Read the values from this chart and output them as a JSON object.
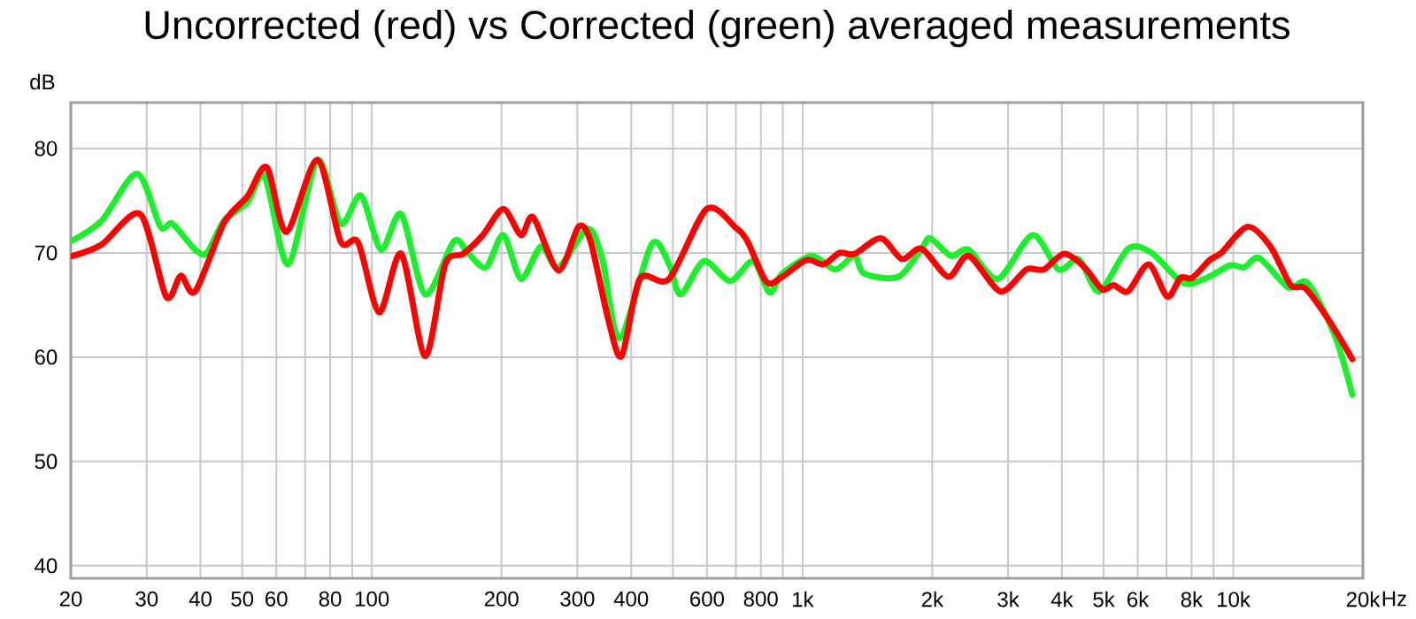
{
  "chart_data": {
    "type": "line",
    "title": "Uncorrected (red) vs Corrected (green) averaged measurements",
    "ylabel": "dB",
    "xlabel": "Hz",
    "log": "x",
    "grid": true,
    "line_style": "solid",
    "xlim": [
      20,
      20000
    ],
    "ylim": [
      38.8,
      84.4
    ],
    "xticks": [
      20,
      30,
      40,
      50,
      60,
      {
        "value": 70,
        "label": null
      },
      80,
      {
        "value": 90,
        "label": null
      },
      100,
      200,
      300,
      400,
      {
        "value": 500,
        "label": null
      },
      600,
      {
        "value": 700,
        "label": null
      },
      800,
      {
        "value": 900,
        "label": null
      },
      {
        "value": 1000,
        "label": "1k"
      },
      {
        "value": 2000,
        "label": "2k"
      },
      {
        "value": 3000,
        "label": "3k"
      },
      {
        "value": 4000,
        "label": "4k"
      },
      {
        "value": 5000,
        "label": "5k"
      },
      {
        "value": 6000,
        "label": "6k"
      },
      {
        "value": 7000,
        "label": null
      },
      {
        "value": 8000,
        "label": "8k"
      },
      {
        "value": 9000,
        "label": null
      },
      {
        "value": 10000,
        "label": "10k"
      },
      {
        "value": 20000,
        "label": "20k"
      }
    ],
    "yticks": [
      40,
      50,
      60,
      70,
      80
    ],
    "series": [
      {
        "color": "#1cf02c",
        "x": [
          20.2,
          23.6,
          28.5,
          32.3,
          34.4,
          38.9,
          41.4,
          45.4,
          51.4,
          56.4,
          63.9,
          74.7,
          84.6,
          94.3,
          105,
          117,
          133,
          155,
          167,
          184,
          202,
          222,
          247,
          271,
          317,
          343,
          376,
          446,
          490,
          521,
          590,
          679,
          768,
          838,
          897,
          1050,
          1190,
          1320,
          1390,
          1670,
          1890,
          1980,
          2210,
          2430,
          2840,
          3420,
          3930,
          4380,
          4880,
          5700,
          6460,
          7660,
          8680,
          9830,
          10600,
          11500,
          13400,
          14900,
          17200,
          18900
        ],
        "values": [
          71.2,
          73.1,
          77.6,
          72.5,
          72.8,
          70.3,
          70.0,
          73.1,
          74.8,
          77.3,
          68.9,
          78.9,
          72.8,
          75.5,
          70.3,
          73.7,
          66.0,
          71.1,
          70.0,
          68.6,
          71.7,
          67.5,
          70.6,
          68.6,
          72.3,
          69.4,
          61.8,
          70.8,
          68.9,
          66.0,
          69.2,
          67.3,
          69.2,
          66.2,
          68.0,
          69.7,
          68.4,
          69.7,
          68.0,
          67.7,
          70.4,
          71.4,
          69.7,
          70.3,
          67.5,
          71.7,
          68.4,
          69.4,
          66.3,
          70.4,
          70.0,
          67.1,
          67.6,
          68.8,
          68.6,
          69.5,
          66.7,
          67.1,
          62.1,
          56.4
        ]
      },
      {
        "color": "#ff0000",
        "x": [
          20.2,
          23.6,
          29.0,
          33.3,
          36.0,
          38.9,
          45.4,
          51.4,
          57.0,
          63.3,
          74.7,
          84.6,
          92.9,
          104,
          117,
          133,
          148,
          163,
          181,
          202,
          222,
          237,
          271,
          302,
          322,
          353,
          380,
          419,
          490,
          599,
          700,
          745,
          825,
          897,
          1020,
          1120,
          1220,
          1320,
          1520,
          1700,
          1890,
          2180,
          2430,
          2880,
          3310,
          3630,
          4050,
          4520,
          4960,
          5280,
          5700,
          6360,
          7030,
          7540,
          8030,
          8810,
          9380,
          10800,
          12200,
          13600,
          14700,
          16700,
          18900
        ],
        "values": [
          69.7,
          70.8,
          73.7,
          65.8,
          67.8,
          66.3,
          72.9,
          75.4,
          78.2,
          72.0,
          78.9,
          71.1,
          71.0,
          64.3,
          69.9,
          60.1,
          68.9,
          69.9,
          71.7,
          74.2,
          71.7,
          73.4,
          68.3,
          72.5,
          71.1,
          63.8,
          60.1,
          67.5,
          67.5,
          74.2,
          72.4,
          71.1,
          67.2,
          67.7,
          69.3,
          68.9,
          70.0,
          69.9,
          71.4,
          69.4,
          70.4,
          67.7,
          69.7,
          66.3,
          68.4,
          68.4,
          69.9,
          68.6,
          66.5,
          66.9,
          66.3,
          68.9,
          65.8,
          67.6,
          67.6,
          69.3,
          70.0,
          72.5,
          70.6,
          66.9,
          66.6,
          63.5,
          59.8
        ]
      }
    ]
  }
}
